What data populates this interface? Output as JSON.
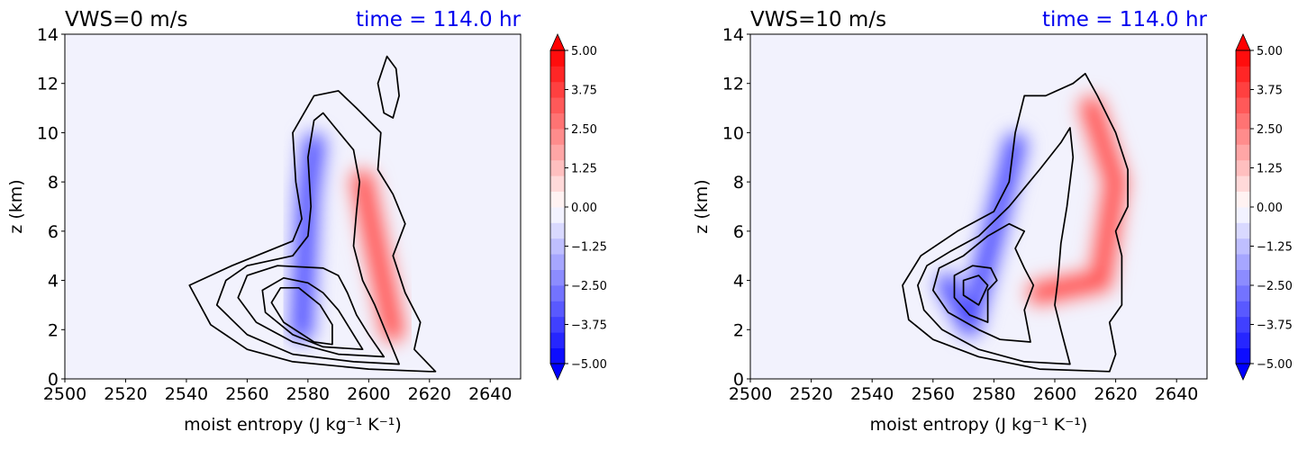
{
  "chart_data": [
    {
      "type": "filled-contour",
      "title": "VWS=0 m/s",
      "title_right": "time = 114.0 hr",
      "title_right_color": "#0000ee",
      "xlabel": "moist entropy (J kg⁻¹ K⁻¹)",
      "ylabel": "z (km)",
      "xlim": [
        2500,
        2650
      ],
      "ylim": [
        0,
        14
      ],
      "xticks": [
        "2500",
        "2520",
        "2540",
        "2560",
        "2580",
        "2600",
        "2620",
        "2640"
      ],
      "yticks": [
        "0",
        "2",
        "4",
        "6",
        "8",
        "10",
        "12",
        "14"
      ],
      "colorbar": {
        "range": [
          -5,
          5
        ],
        "ticks": [
          "5.00",
          "3.75",
          "2.50",
          "1.25",
          "0.00",
          "−1.25",
          "−2.50",
          "−3.75",
          "−5.00"
        ],
        "colormap": "bwr",
        "extend": "both"
      },
      "features": {
        "negative_core": [
          [
            2578,
            2.0
          ],
          [
            2580,
            7.5
          ],
          [
            2582,
            9.5
          ]
        ],
        "positive_core": [
          [
            2598,
            8.0
          ],
          [
            2603,
            5.0
          ],
          [
            2608,
            2.0
          ]
        ],
        "contours": [
          [
            [
              2620,
              0.3
            ],
            [
              2600,
              0.4
            ],
            [
              2575,
              0.7
            ],
            [
              2560,
              1.2
            ],
            [
              2548,
              2.2
            ],
            [
              2541,
              3.8
            ],
            [
              2555,
              4.6
            ],
            [
              2575,
              5.6
            ],
            [
              2578,
              6.5
            ],
            [
              2576,
              8.0
            ],
            [
              2575,
              10.0
            ],
            [
              2582,
              11.5
            ],
            [
              2590,
              11.7
            ],
            [
              2596,
              11.0
            ],
            [
              2604,
              10.0
            ],
            [
              2603,
              8.5
            ],
            [
              2608,
              7.5
            ],
            [
              2612,
              6.3
            ],
            [
              2608,
              5.0
            ],
            [
              2612,
              3.5
            ],
            [
              2617,
              2.3
            ],
            [
              2615,
              1.2
            ],
            [
              2622,
              0.3
            ]
          ],
          [
            [
              2610,
              0.6
            ],
            [
              2595,
              0.7
            ],
            [
              2575,
              1.0
            ],
            [
              2560,
              1.8
            ],
            [
              2550,
              3.0
            ],
            [
              2553,
              4.0
            ],
            [
              2560,
              4.6
            ],
            [
              2575,
              5.0
            ],
            [
              2580,
              5.8
            ],
            [
              2581,
              7.0
            ],
            [
              2580,
              9.0
            ],
            [
              2582,
              10.5
            ],
            [
              2585,
              10.8
            ],
            [
              2589,
              10.2
            ],
            [
              2595,
              9.3
            ],
            [
              2597,
              8.0
            ],
            [
              2596,
              6.8
            ],
            [
              2595,
              5.4
            ],
            [
              2598,
              4.0
            ],
            [
              2602,
              3.0
            ],
            [
              2606,
              1.8
            ],
            [
              2610,
              0.6
            ]
          ],
          [
            [
              2605,
              0.9
            ],
            [
              2590,
              1.0
            ],
            [
              2575,
              1.5
            ],
            [
              2563,
              2.3
            ],
            [
              2557,
              3.3
            ],
            [
              2560,
              4.2
            ],
            [
              2570,
              4.6
            ],
            [
              2585,
              4.5
            ],
            [
              2590,
              4.2
            ],
            [
              2593,
              3.5
            ],
            [
              2596,
              2.6
            ],
            [
              2600,
              1.8
            ],
            [
              2605,
              0.9
            ]
          ],
          [
            [
              2598,
              1.2
            ],
            [
              2585,
              1.3
            ],
            [
              2575,
              1.8
            ],
            [
              2566,
              2.7
            ],
            [
              2565,
              3.6
            ],
            [
              2572,
              4.1
            ],
            [
              2580,
              3.9
            ],
            [
              2585,
              3.5
            ],
            [
              2590,
              2.8
            ],
            [
              2594,
              2.0
            ],
            [
              2598,
              1.2
            ]
          ],
          [
            [
              2588,
              1.4
            ],
            [
              2582,
              1.5
            ],
            [
              2572,
              2.3
            ],
            [
              2568,
              3.1
            ],
            [
              2571,
              3.7
            ],
            [
              2577,
              3.7
            ],
            [
              2584,
              3.0
            ],
            [
              2588,
              2.2
            ],
            [
              2588,
              1.4
            ]
          ],
          [
            [
              2605,
              10.8
            ],
            [
              2603,
              12.0
            ],
            [
              2606,
              13.1
            ],
            [
              2609,
              12.6
            ],
            [
              2610,
              11.5
            ],
            [
              2608,
              10.6
            ],
            [
              2605,
              10.8
            ]
          ]
        ]
      }
    },
    {
      "type": "filled-contour",
      "title": "VWS=10 m/s",
      "title_right": "time = 114.0 hr",
      "title_right_color": "#0000ee",
      "xlabel": "moist entropy (J kg⁻¹ K⁻¹)",
      "ylabel": "z (km)",
      "xlim": [
        2500,
        2650
      ],
      "ylim": [
        0,
        14
      ],
      "xticks": [
        "2500",
        "2520",
        "2540",
        "2560",
        "2580",
        "2600",
        "2620",
        "2640"
      ],
      "yticks": [
        "0",
        "2",
        "4",
        "6",
        "8",
        "10",
        "12",
        "14"
      ],
      "colorbar": {
        "range": [
          -5,
          5
        ],
        "ticks": [
          "5.00",
          "3.75",
          "2.50",
          "1.25",
          "0.00",
          "−1.25",
          "−2.50",
          "−3.75",
          "−5.00"
        ],
        "colormap": "bwr",
        "extend": "both"
      },
      "features": {
        "negative_core": [
          [
            2565,
            3.8
          ],
          [
            2572,
            2.2
          ],
          [
            2580,
            6.0
          ],
          [
            2587,
            9.5
          ]
        ],
        "positive_core": [
          [
            2595,
            3.5
          ],
          [
            2615,
            4.0
          ],
          [
            2620,
            8.0
          ],
          [
            2612,
            11.0
          ]
        ],
        "contours": [
          [
            [
              2618,
              0.3
            ],
            [
              2595,
              0.4
            ],
            [
              2575,
              0.9
            ],
            [
              2560,
              1.6
            ],
            [
              2552,
              2.4
            ],
            [
              2550,
              3.8
            ],
            [
              2556,
              5.0
            ],
            [
              2568,
              6.0
            ],
            [
              2580,
              6.8
            ],
            [
              2585,
              8.0
            ],
            [
              2587,
              10.0
            ],
            [
              2590,
              11.5
            ],
            [
              2597,
              11.5
            ],
            [
              2606,
              12.0
            ],
            [
              2610,
              12.4
            ],
            [
              2614,
              11.5
            ],
            [
              2620,
              10.0
            ],
            [
              2624,
              8.5
            ],
            [
              2624,
              7.0
            ],
            [
              2620,
              6.0
            ],
            [
              2622,
              5.0
            ],
            [
              2622,
              3.0
            ],
            [
              2618,
              2.3
            ],
            [
              2620,
              1.0
            ],
            [
              2618,
              0.3
            ]
          ],
          [
            [
              2605,
              0.6
            ],
            [
              2590,
              0.7
            ],
            [
              2575,
              1.2
            ],
            [
              2563,
              2.0
            ],
            [
              2557,
              2.8
            ],
            [
              2555,
              3.8
            ],
            [
              2558,
              4.6
            ],
            [
              2566,
              5.2
            ],
            [
              2575,
              5.8
            ],
            [
              2585,
              7.0
            ],
            [
              2595,
              8.5
            ],
            [
              2602,
              9.6
            ],
            [
              2605,
              10.2
            ],
            [
              2606,
              9.0
            ],
            [
              2604,
              7.0
            ],
            [
              2602,
              5.5
            ],
            [
              2601,
              4.0
            ],
            [
              2600,
              3.0
            ],
            [
              2602,
              2.0
            ],
            [
              2605,
              0.6
            ]
          ],
          [
            [
              2592,
              1.5
            ],
            [
              2582,
              1.6
            ],
            [
              2575,
              2.0
            ],
            [
              2565,
              2.7
            ],
            [
              2560,
              3.6
            ],
            [
              2562,
              4.5
            ],
            [
              2570,
              5.0
            ],
            [
              2578,
              5.8
            ],
            [
              2585,
              6.3
            ],
            [
              2590,
              6.0
            ],
            [
              2587,
              5.3
            ],
            [
              2590,
              4.5
            ],
            [
              2593,
              3.8
            ],
            [
              2590,
              2.8
            ],
            [
              2592,
              1.5
            ]
          ],
          [
            [
              2578,
              2.3
            ],
            [
              2572,
              2.6
            ],
            [
              2567,
              3.3
            ],
            [
              2567,
              4.2
            ],
            [
              2573,
              4.6
            ],
            [
              2579,
              4.5
            ],
            [
              2581,
              4.0
            ],
            [
              2578,
              3.6
            ],
            [
              2578,
              2.3
            ]
          ],
          [
            [
              2575,
              3.0
            ],
            [
              2570,
              3.4
            ],
            [
              2570,
              4.0
            ],
            [
              2575,
              4.2
            ],
            [
              2578,
              3.8
            ],
            [
              2575,
              3.0
            ]
          ]
        ]
      }
    }
  ]
}
